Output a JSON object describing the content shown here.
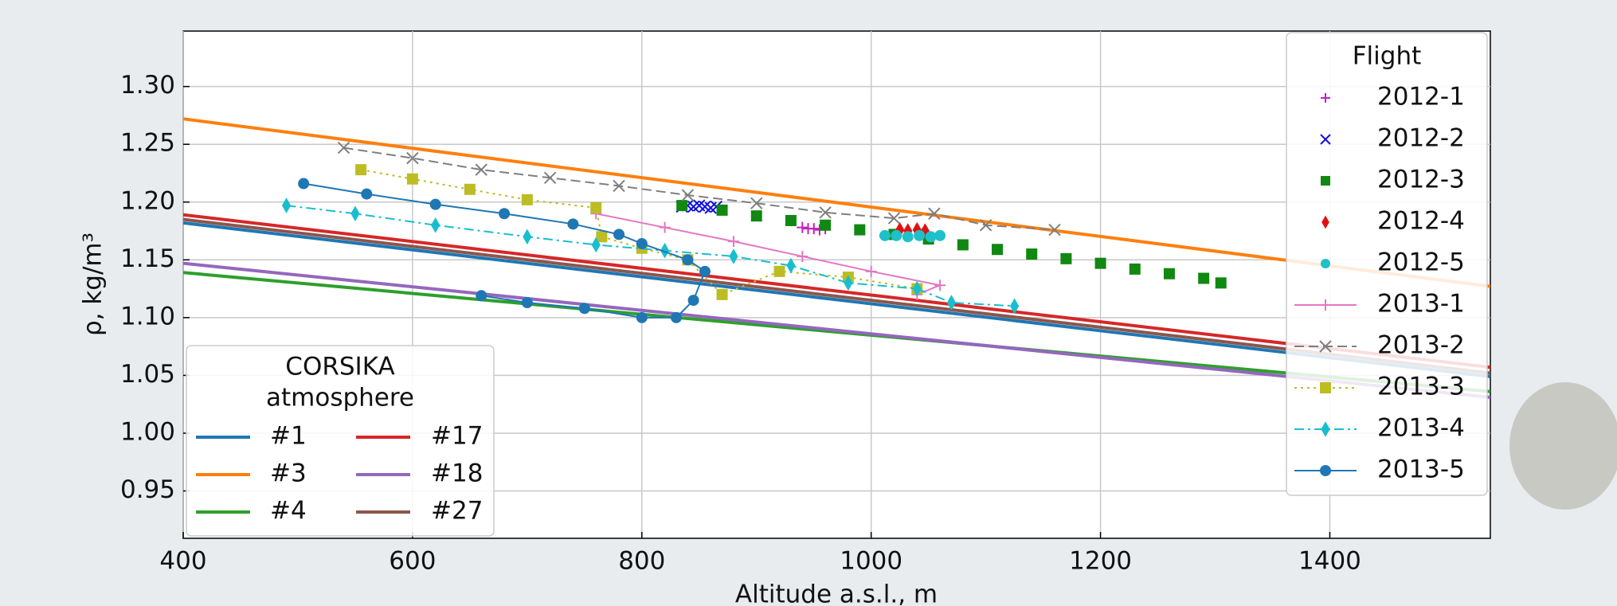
{
  "chart_data": {
    "type": "scatter",
    "x_label": "Altitude a.s.l., m",
    "y_label": "ρ, kg/m³",
    "xlim": [
      400,
      1540
    ],
    "ylim": [
      0.909,
      1.348
    ],
    "xticks": [
      400,
      600,
      800,
      1000,
      1200,
      1400
    ],
    "yticks": [
      {
        "value": 0.95,
        "label": "0.95"
      },
      {
        "value": 1.0,
        "label": "1.00"
      },
      {
        "value": 1.05,
        "label": "1.05"
      },
      {
        "value": 1.1,
        "label": "1.10"
      },
      {
        "value": 1.15,
        "label": "1.15"
      },
      {
        "value": 1.2,
        "label": "1.20"
      },
      {
        "value": 1.25,
        "label": "1.25"
      },
      {
        "value": 1.3,
        "label": "1.30"
      }
    ],
    "grid": true,
    "flight_legend_title": "Flight",
    "model_legend_title": [
      "CORSIKA",
      "atmosphere"
    ],
    "models": [
      {
        "name": "#1",
        "color": "#1f77b4",
        "x": [
          400,
          1540
        ],
        "values": [
          1.182,
          1.049
        ]
      },
      {
        "name": "#3",
        "color": "#ff7f0e",
        "x": [
          400,
          1540
        ],
        "values": [
          1.272,
          1.127
        ]
      },
      {
        "name": "#4",
        "color": "#2ca02c",
        "x": [
          400,
          1540
        ],
        "values": [
          1.139,
          1.036
        ]
      },
      {
        "name": "#17",
        "color": "#d62728",
        "x": [
          400,
          1540
        ],
        "values": [
          1.189,
          1.057
        ]
      },
      {
        "name": "#18",
        "color": "#9467bd",
        "x": [
          400,
          1540
        ],
        "values": [
          1.147,
          1.031
        ]
      },
      {
        "name": "#27",
        "color": "#8c564b",
        "x": [
          400,
          1540
        ],
        "values": [
          1.185,
          1.052
        ]
      }
    ],
    "series": [
      {
        "name": "2012-1",
        "color": "#c020c0",
        "marker": "+",
        "x": [
          940,
          945,
          950,
          955,
          960
        ],
        "values": [
          1.178,
          1.177,
          1.177,
          1.176,
          1.177
        ]
      },
      {
        "name": "2012-2",
        "color": "#1010e0",
        "marker": "x",
        "x": [
          835,
          840,
          845,
          850,
          855,
          860,
          865
        ],
        "values": [
          1.196,
          1.197,
          1.196,
          1.197,
          1.196,
          1.195,
          1.196
        ]
      },
      {
        "name": "2012-3",
        "color": "#118811",
        "marker": "s",
        "x": [
          835,
          870,
          900,
          930,
          960,
          990,
          1020,
          1050,
          1080,
          1110,
          1140,
          1170,
          1200,
          1230,
          1260,
          1290,
          1305
        ],
        "values": [
          1.197,
          1.193,
          1.188,
          1.184,
          1.18,
          1.176,
          1.172,
          1.168,
          1.163,
          1.159,
          1.155,
          1.151,
          1.147,
          1.142,
          1.138,
          1.134,
          1.13
        ]
      },
      {
        "name": "2012-4",
        "color": "#e01010",
        "marker": "d",
        "x": [
          1025,
          1032,
          1040,
          1047
        ],
        "values": [
          1.176,
          1.175,
          1.176,
          1.175
        ]
      },
      {
        "name": "2012-5",
        "color": "#20c0c8",
        "marker": "o",
        "x": [
          1012,
          1022,
          1032,
          1042,
          1052,
          1060
        ],
        "values": [
          1.171,
          1.171,
          1.17,
          1.171,
          1.17,
          1.171
        ]
      },
      {
        "name": "2013-1",
        "color": "#e377c2",
        "marker": "+",
        "linestyle": "-",
        "x": [
          760,
          820,
          880,
          940,
          1000,
          1060,
          1040
        ],
        "values": [
          1.19,
          1.178,
          1.166,
          1.153,
          1.14,
          1.128,
          1.12
        ]
      },
      {
        "name": "2013-2",
        "color": "#7f7f7f",
        "marker": "x",
        "linestyle": "--",
        "x": [
          540,
          600,
          660,
          720,
          780,
          840,
          900,
          960,
          1020,
          1055,
          1100,
          1160
        ],
        "values": [
          1.247,
          1.238,
          1.228,
          1.221,
          1.214,
          1.206,
          1.199,
          1.191,
          1.186,
          1.19,
          1.18,
          1.176
        ]
      },
      {
        "name": "2013-3",
        "color": "#bcbd22",
        "marker": "s",
        "linestyle": ":",
        "x": [
          555,
          600,
          650,
          700,
          760,
          765,
          800,
          840,
          870,
          920,
          980,
          1040
        ],
        "values": [
          1.228,
          1.22,
          1.211,
          1.202,
          1.195,
          1.17,
          1.16,
          1.15,
          1.12,
          1.14,
          1.135,
          1.125
        ]
      },
      {
        "name": "2013-4",
        "color": "#17becf",
        "marker": "d",
        "linestyle": "-.",
        "x": [
          490,
          550,
          620,
          700,
          760,
          820,
          880,
          930,
          980,
          1040,
          1070,
          1125
        ],
        "values": [
          1.197,
          1.19,
          1.18,
          1.17,
          1.163,
          1.158,
          1.153,
          1.145,
          1.13,
          1.125,
          1.113,
          1.11
        ]
      },
      {
        "name": "2013-5",
        "color": "#1f77b4",
        "marker": "o",
        "linestyle": "-",
        "x": [
          505,
          560,
          620,
          680,
          740,
          780,
          800,
          840,
          855,
          845,
          830,
          800,
          750,
          700,
          660
        ],
        "values": [
          1.216,
          1.207,
          1.198,
          1.19,
          1.181,
          1.172,
          1.164,
          1.15,
          1.14,
          1.115,
          1.1,
          1.1,
          1.108,
          1.113,
          1.119
        ]
      }
    ]
  }
}
